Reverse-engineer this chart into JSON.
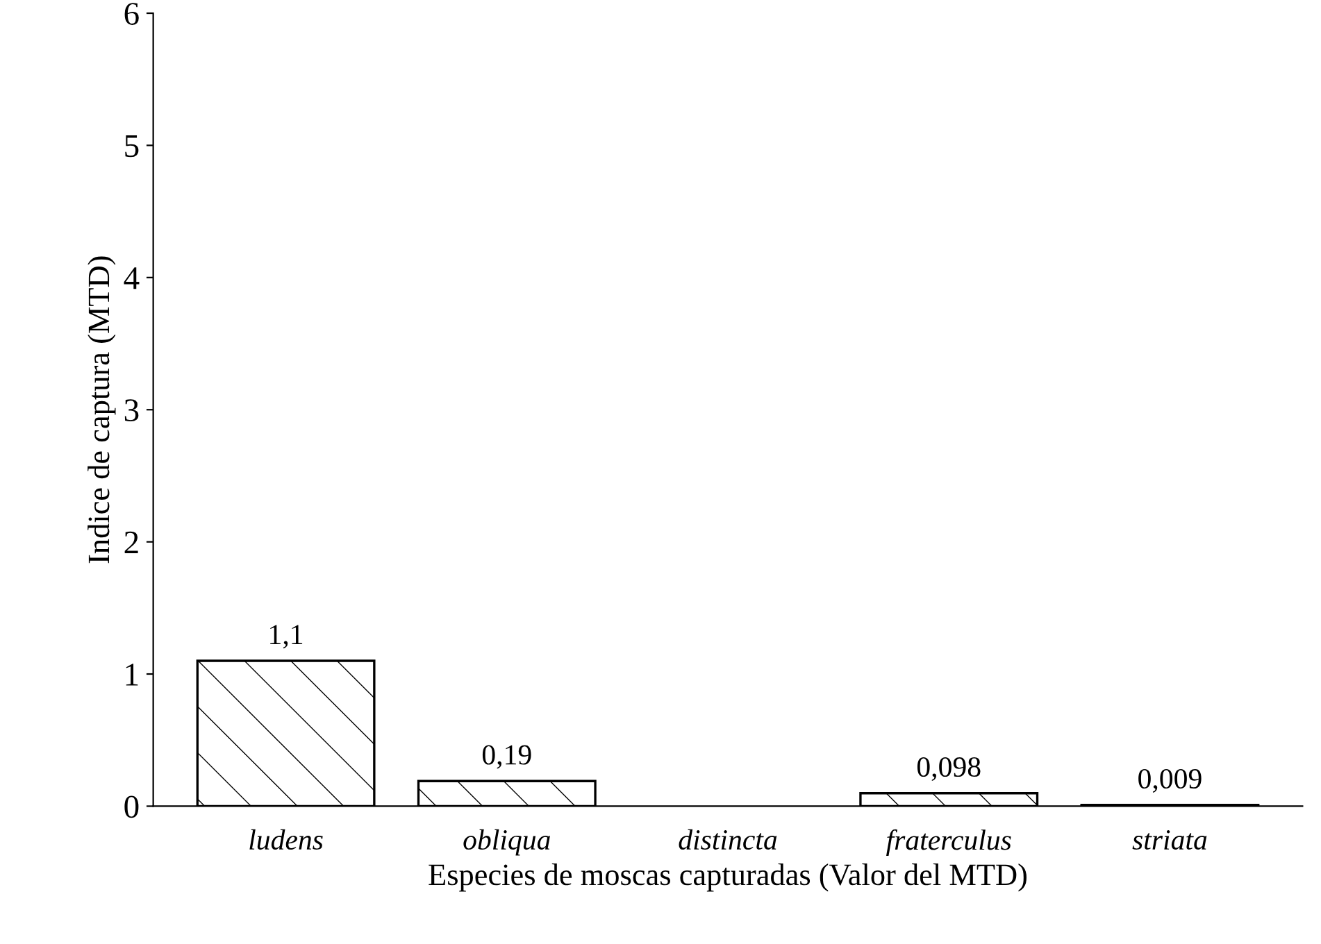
{
  "chart_data": {
    "type": "bar",
    "xlabel": "Especies de moscas capturadas (Valor del MTD)",
    "ylabel": "Indice de captura (MTD)",
    "categories": [
      "ludens",
      "obliqua",
      "distincta",
      "fraterculus",
      "striata"
    ],
    "values": [
      1.1,
      0.19,
      null,
      0.098,
      0.009
    ],
    "value_labels": [
      "1,1",
      "0,19",
      null,
      "0,098",
      "0,009"
    ],
    "ylim": [
      0,
      6
    ],
    "yticks": [
      0,
      1,
      2,
      3,
      4,
      5,
      6
    ],
    "grid": false,
    "legend": false
  }
}
